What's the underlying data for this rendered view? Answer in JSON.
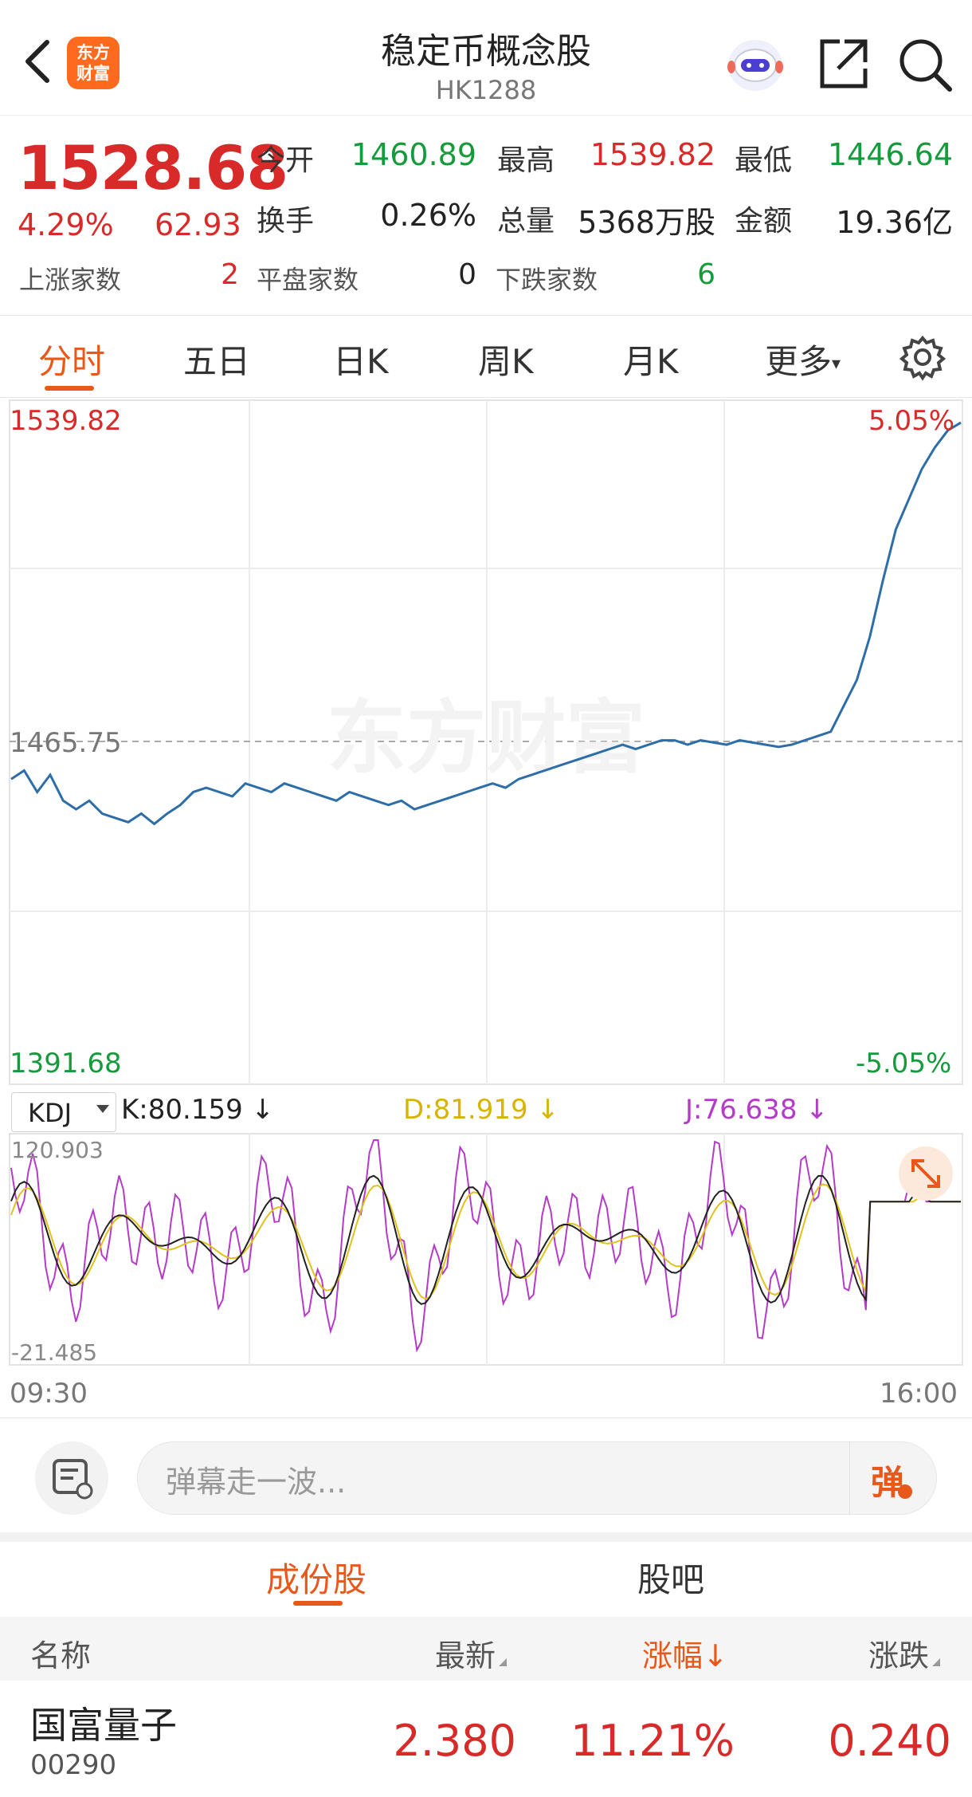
{
  "header": {
    "title": "稳定币概念股",
    "code": "HK1288",
    "logo_text_line1": "东方",
    "logo_text_line2": "财富"
  },
  "quote": {
    "price": "1528.68",
    "change_pct": "4.29%",
    "change": "62.93",
    "open_label": "今开",
    "open_value": "1460.89",
    "high_label": "最高",
    "high_value": "1539.82",
    "low_label": "最低",
    "low_value": "1446.64",
    "turnover_rate_label": "换手",
    "turnover_rate_value": "0.26%",
    "volume_label": "总量",
    "volume_value": "5368万股",
    "amount_label": "金额",
    "amount_value": "19.36亿",
    "up_count_label": "上涨家数",
    "up_count_value": "2",
    "flat_count_label": "平盘家数",
    "flat_count_value": "0",
    "down_count_label": "下跌家数",
    "down_count_value": "6"
  },
  "tabs": [
    "分时",
    "五日",
    "日K",
    "周K",
    "月K",
    "更多"
  ],
  "chart": {
    "high_label": "1539.82",
    "high_pct": "5.05%",
    "mid_label": "1465.75",
    "low_label": "1391.68",
    "low_pct": "-5.05%",
    "watermark": "东方财富",
    "time_start": "09:30",
    "time_end": "16:00",
    "colors": {
      "price_line": "#2d6ea8",
      "k_line": "#222222",
      "d_line": "#e0c21a",
      "j_line": "#b43bc8"
    }
  },
  "kdj": {
    "selector": "KDJ",
    "k": "K:80.159 ↓",
    "d": "D:81.919 ↓",
    "j": "J:76.638 ↓",
    "max": "120.903",
    "min": "-21.485"
  },
  "danmaku": {
    "placeholder": "弹幕走一波...",
    "button": "弹"
  },
  "lower_tabs": [
    "成份股",
    "股吧"
  ],
  "table": {
    "headers": {
      "name": "名称",
      "latest": "最新",
      "change_pct": "涨幅↓",
      "change": "涨跌"
    },
    "rows": [
      {
        "name": "国富量子",
        "code": "00290",
        "latest": "2.380",
        "change_pct": "11.21%",
        "change": "0.240"
      }
    ]
  },
  "chart_data": {
    "type": "line",
    "x_range": [
      "09:30",
      "16:00"
    ],
    "ylim": [
      1391.68,
      1539.82
    ],
    "prev_close": 1465.75,
    "series": [
      {
        "values": [
          1457,
          1459,
          1454,
          1458,
          1452,
          1450,
          1452,
          1449,
          1448,
          1447,
          1449,
          1446.6,
          1449,
          1451,
          1454,
          1455,
          1454,
          1453,
          1456,
          1455,
          1454,
          1456,
          1455,
          1454,
          1453,
          1452,
          1454,
          1453,
          1452,
          1451,
          1452,
          1450,
          1451,
          1452,
          1453,
          1454,
          1455,
          1456,
          1455,
          1457,
          1458,
          1459,
          1460,
          1461,
          1462,
          1463,
          1464,
          1465,
          1464,
          1465,
          1466,
          1466,
          1465,
          1466,
          1465.5,
          1465,
          1466,
          1465.5,
          1465,
          1464.5,
          1465,
          1466,
          1467,
          1468,
          1474,
          1480,
          1490,
          1503,
          1515,
          1522,
          1529,
          1534,
          1538,
          1539.8
        ]
      }
    ]
  }
}
